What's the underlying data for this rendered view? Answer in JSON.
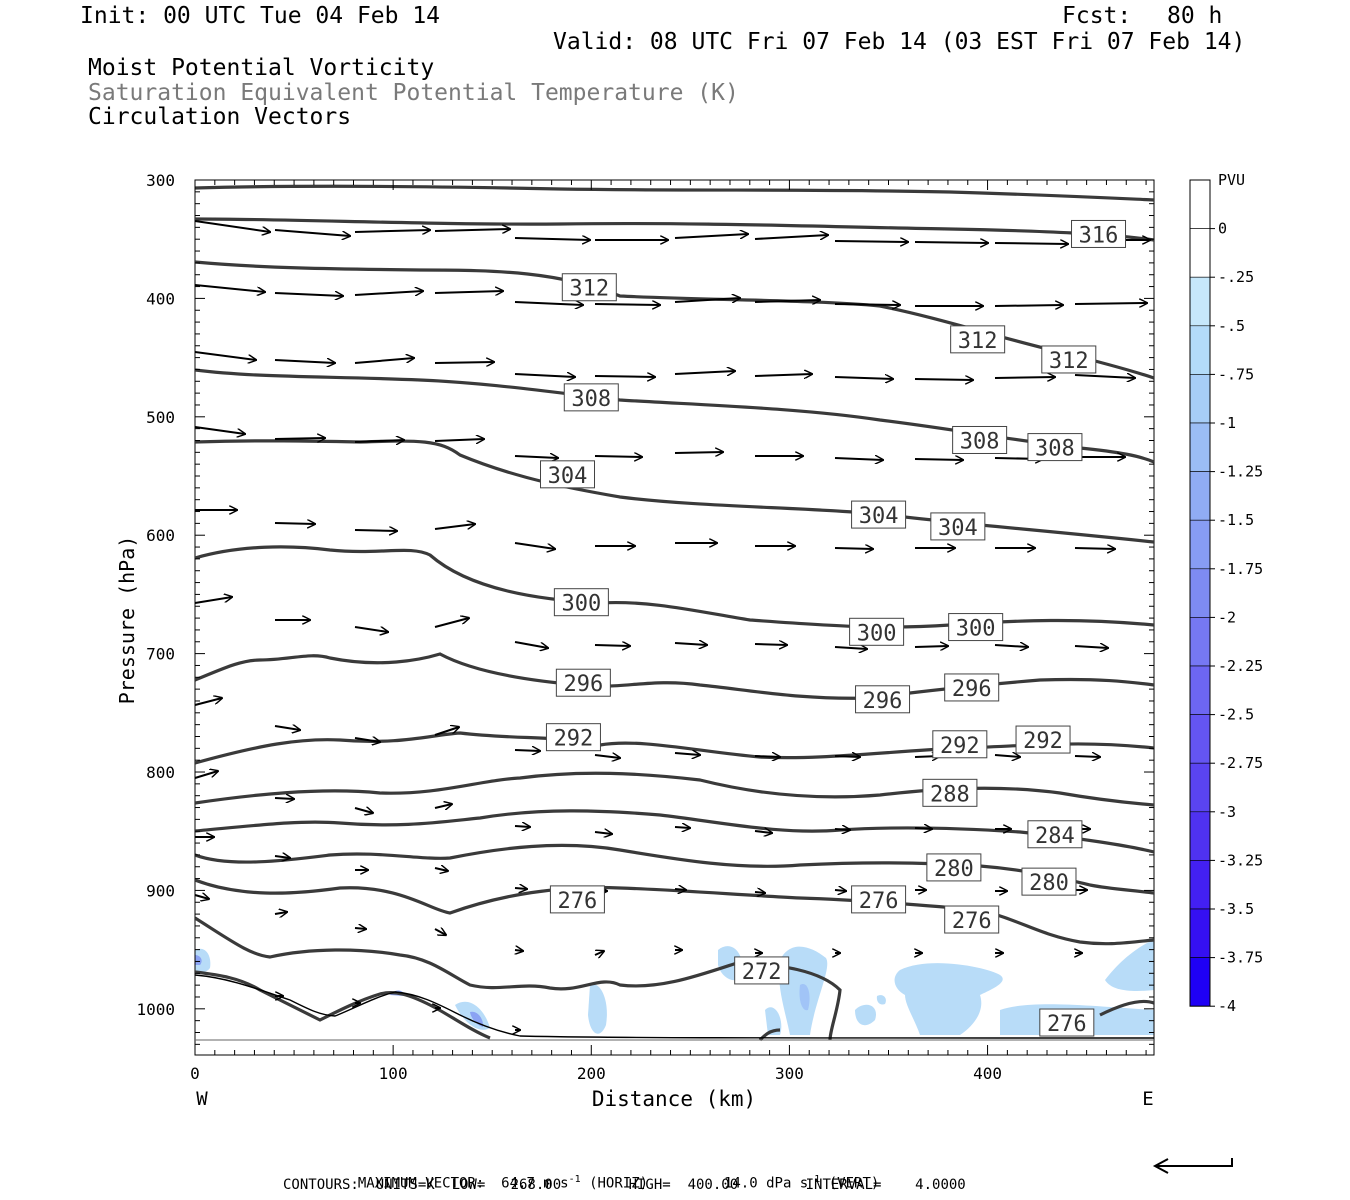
{
  "header": {
    "init": "Init: 00 UTC Tue 04 Feb 14",
    "fcst_label": "Fcst:",
    "fcst_value": "80 h",
    "valid": "Valid: 08 UTC Fri 07 Feb 14 (03 EST Fri 07 Feb 14)",
    "line1": "Moist Potential Vorticity",
    "line2": "Saturation Equivalent Potential Temperature (K)",
    "line3": "Circulation Vectors"
  },
  "footer": {
    "max_vector_label": "MAXIMUM VECTOR:",
    "max_horiz": "64.7 m s",
    "horiz_tag": "(HORIZ)",
    "max_vert": "14.0 dPa s",
    "vert_tag": "(VERT)",
    "exp": "-1",
    "contours": "CONTOURS:  UNITS=K  LOW=   268.00        HIGH=  400.00        INTERVAL=    4.0000"
  },
  "chart_data": {
    "type": "contour",
    "xlabel": "Distance (km)",
    "ylabel": "Pressure (hPa)",
    "x_left_label": "W",
    "x_right_label": "E",
    "xlim": [
      0,
      484
    ],
    "ylim": [
      300,
      1039
    ],
    "x_ticks": [
      0,
      100,
      200,
      300,
      400
    ],
    "y_ticks": [
      300,
      400,
      500,
      600,
      700,
      800,
      900,
      1000
    ],
    "colorbar": {
      "title": "PVU",
      "labels": [
        "0",
        "-.25",
        "-.5",
        "-.75",
        "-1",
        "-1.25",
        "-1.5",
        "-1.75",
        "-2",
        "-2.25",
        "-2.5",
        "-2.75",
        "-3",
        "-3.25",
        "-3.5",
        "-3.75",
        "-4"
      ],
      "colors": [
        "#ffffff",
        "#ffffff",
        "#c6e8fb",
        "#b3dbf9",
        "#a7cdf7",
        "#9bbdf5",
        "#90acf4",
        "#879cf4",
        "#7e8bf3",
        "#7678f3",
        "#6d66f2",
        "#6455f2",
        "#5a44f1",
        "#4f32f1",
        "#4320f2",
        "#3510f3",
        "#1f00f5"
      ]
    },
    "contour_labels": [
      {
        "text": "316",
        "x": 456,
        "p": 346
      },
      {
        "text": "312",
        "x": 199,
        "p": 391
      },
      {
        "text": "312",
        "x": 395,
        "p": 435
      },
      {
        "text": "312",
        "x": 441,
        "p": 452
      },
      {
        "text": "308",
        "x": 200,
        "p": 484
      },
      {
        "text": "308",
        "x": 396,
        "p": 520
      },
      {
        "text": "308",
        "x": 434,
        "p": 526
      },
      {
        "text": "304",
        "x": 188,
        "p": 549
      },
      {
        "text": "304",
        "x": 345,
        "p": 583
      },
      {
        "text": "304",
        "x": 385,
        "p": 593
      },
      {
        "text": "300",
        "x": 195,
        "p": 657
      },
      {
        "text": "300",
        "x": 344,
        "p": 682
      },
      {
        "text": "300",
        "x": 394,
        "p": 678
      },
      {
        "text": "296",
        "x": 196,
        "p": 725
      },
      {
        "text": "296",
        "x": 347,
        "p": 739
      },
      {
        "text": "296",
        "x": 392,
        "p": 729
      },
      {
        "text": "292",
        "x": 191,
        "p": 771
      },
      {
        "text": "292",
        "x": 386,
        "p": 777
      },
      {
        "text": "292",
        "x": 428,
        "p": 773
      },
      {
        "text": "288",
        "x": 381,
        "p": 818
      },
      {
        "text": "284",
        "x": 434,
        "p": 853
      },
      {
        "text": "280",
        "x": 383,
        "p": 881
      },
      {
        "text": "280",
        "x": 431,
        "p": 893
      },
      {
        "text": "276",
        "x": 193,
        "p": 908
      },
      {
        "text": "276",
        "x": 345,
        "p": 908
      },
      {
        "text": "276",
        "x": 392,
        "p": 925
      },
      {
        "text": "276",
        "x": 440,
        "p": 1012
      },
      {
        "text": "272",
        "x": 286,
        "p": 968
      }
    ]
  }
}
